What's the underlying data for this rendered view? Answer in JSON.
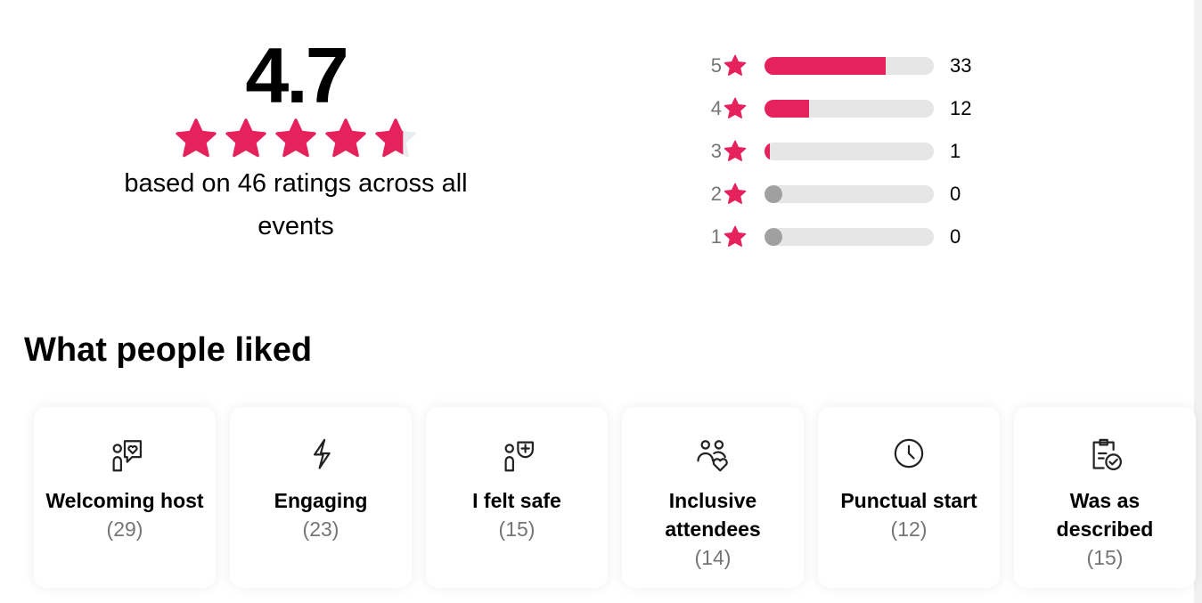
{
  "summary": {
    "average": "4.7",
    "rating_value": 4.7,
    "max_rating": 5,
    "based_on": "based on 46 ratings across all events"
  },
  "distribution": [
    {
      "stars": "5",
      "count": "33",
      "percent": 71.7
    },
    {
      "stars": "4",
      "count": "12",
      "percent": 26.1
    },
    {
      "stars": "3",
      "count": "1",
      "percent": 2.2
    },
    {
      "stars": "2",
      "count": "0",
      "percent": 0
    },
    {
      "stars": "1",
      "count": "0",
      "percent": 0
    }
  ],
  "liked": {
    "title": "What people liked",
    "items": [
      {
        "label": "Welcoming host",
        "count": "(29)",
        "icon": "person-heart-chat-icon"
      },
      {
        "label": "Engaging",
        "count": "(23)",
        "icon": "lightning-icon"
      },
      {
        "label": "I felt safe",
        "count": "(15)",
        "icon": "person-shield-icon"
      },
      {
        "label": "Inclusive attendees",
        "count": "(14)",
        "icon": "people-heart-icon"
      },
      {
        "label": "Punctual start",
        "count": "(12)",
        "icon": "clock-icon"
      },
      {
        "label": "Was as described",
        "count": "(15)",
        "icon": "clipboard-check-icon"
      }
    ]
  },
  "colors": {
    "accent": "#e6225c",
    "track": "#e6e6e6",
    "empty": "#a0a0a0"
  }
}
